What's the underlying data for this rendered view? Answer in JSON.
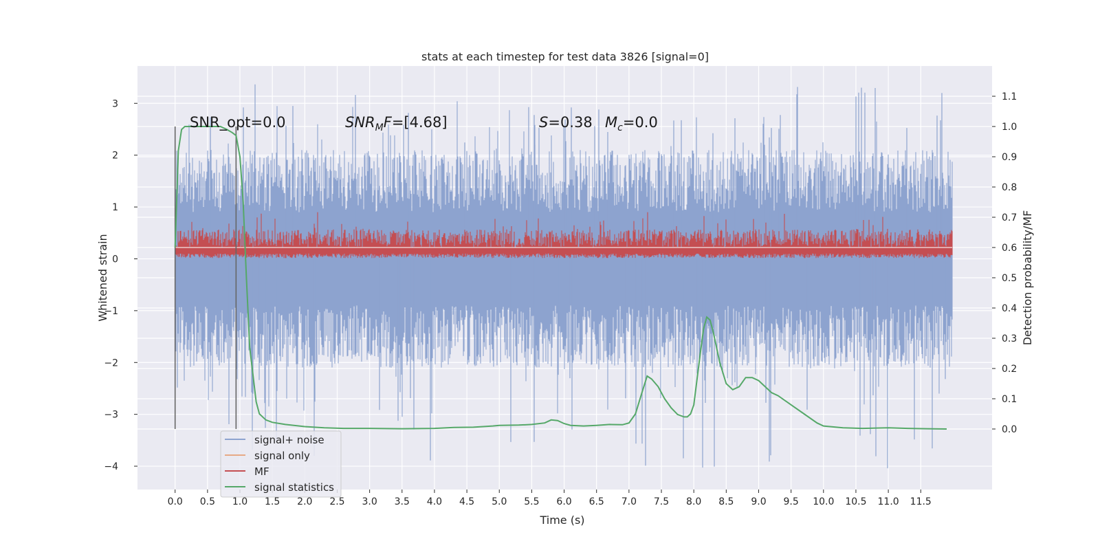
{
  "chart_data": {
    "type": "line",
    "title": "stats at each timestep for test data 3826 [signal=0]",
    "xlabel": "Time (s)",
    "ylabel_left": "Whitened strain",
    "ylabel_right": "Detection probability/MF",
    "xlim": [
      -0.58,
      12.6
    ],
    "ylim_left": [
      -4.45,
      3.72
    ],
    "ylim_right": [
      -0.2,
      1.2
    ],
    "x_ticks": [
      "0.0",
      "0.5",
      "1.0",
      "1.5",
      "2.0",
      "2.5",
      "3.0",
      "3.5",
      "4.0",
      "4.5",
      "5.0",
      "5.5",
      "6.0",
      "6.5",
      "7.0",
      "7.5",
      "8.0",
      "8.5",
      "9.0",
      "9.5",
      "10.0",
      "10.5",
      "11.0",
      "11.5"
    ],
    "y_left_ticks": [
      "3",
      "2",
      "1",
      "0",
      "−1",
      "−2",
      "−3",
      "−4"
    ],
    "y_right_ticks": [
      "1.1",
      "1.0",
      "0.9",
      "0.8",
      "0.7",
      "0.6",
      "0.5",
      "0.4",
      "0.3",
      "0.2",
      "0.1",
      "0.0"
    ],
    "grid": true,
    "legend_placement": "lower-left",
    "annotations": {
      "snr_opt": "SNR_opt=0.0",
      "snr_mf_base": "SNR",
      "snr_mf_sub": "M",
      "snr_mf_rest": "F=[4.68]",
      "s_label": "S",
      "s_value": "=0.38",
      "mc_label": "M",
      "mc_sub": "c",
      "mc_value": "=0.0"
    },
    "vlines_x": [
      0.0,
      0.94
    ],
    "series": [
      {
        "name": "signal+ noise",
        "color": "#8da3cf",
        "axis": "left",
        "note": "noise envelope",
        "x_range": [
          0.0,
          11.98
        ],
        "level": 0.0,
        "spread": 0.95,
        "peaks_max": 3.4,
        "peaks_min": -4.1
      },
      {
        "name": "signal only",
        "color": "#e7a985",
        "axis": "left",
        "values": []
      },
      {
        "name": "MF",
        "color": "#c44e52",
        "axis": "right",
        "x_range": [
          0.0,
          11.98
        ],
        "baseline": 0.6,
        "max": 0.73
      },
      {
        "name": "signal statistics",
        "color": "#55a868",
        "axis": "right",
        "x": [
          0.0,
          0.05,
          0.1,
          0.15,
          0.2,
          0.3,
          0.4,
          0.5,
          0.6,
          0.7,
          0.8,
          0.88,
          0.94,
          1.0,
          1.05,
          1.1,
          1.15,
          1.2,
          1.25,
          1.3,
          1.4,
          1.5,
          1.7,
          2.0,
          2.3,
          2.6,
          3.0,
          3.5,
          4.0,
          4.3,
          4.6,
          4.9,
          5.0,
          5.3,
          5.5,
          5.7,
          5.8,
          5.9,
          6.0,
          6.1,
          6.3,
          6.5,
          6.7,
          6.9,
          7.0,
          7.1,
          7.2,
          7.28,
          7.35,
          7.45,
          7.55,
          7.65,
          7.75,
          7.85,
          7.9,
          7.95,
          8.0,
          8.1,
          8.15,
          8.2,
          8.25,
          8.3,
          8.4,
          8.5,
          8.6,
          8.7,
          8.8,
          8.9,
          9.0,
          9.1,
          9.2,
          9.3,
          9.5,
          9.7,
          9.9,
          10.0,
          10.3,
          10.6,
          11.0,
          11.3,
          11.6,
          11.9
        ],
        "values": [
          0.6,
          0.92,
          0.99,
          1.0,
          1.0,
          1.0,
          1.0,
          1.0,
          1.0,
          1.0,
          0.99,
          0.98,
          0.97,
          0.9,
          0.75,
          0.5,
          0.27,
          0.18,
          0.09,
          0.05,
          0.03,
          0.022,
          0.015,
          0.008,
          0.004,
          0.002,
          0.002,
          0.001,
          0.002,
          0.005,
          0.006,
          0.01,
          0.012,
          0.013,
          0.015,
          0.02,
          0.03,
          0.028,
          0.018,
          0.012,
          0.01,
          0.012,
          0.015,
          0.014,
          0.02,
          0.05,
          0.12,
          0.175,
          0.165,
          0.14,
          0.1,
          0.07,
          0.048,
          0.04,
          0.04,
          0.05,
          0.08,
          0.25,
          0.33,
          0.37,
          0.36,
          0.32,
          0.22,
          0.15,
          0.13,
          0.14,
          0.17,
          0.17,
          0.16,
          0.14,
          0.12,
          0.11,
          0.08,
          0.05,
          0.02,
          0.01,
          0.004,
          0.002,
          0.004,
          0.002,
          0.001,
          0.0
        ]
      }
    ]
  }
}
